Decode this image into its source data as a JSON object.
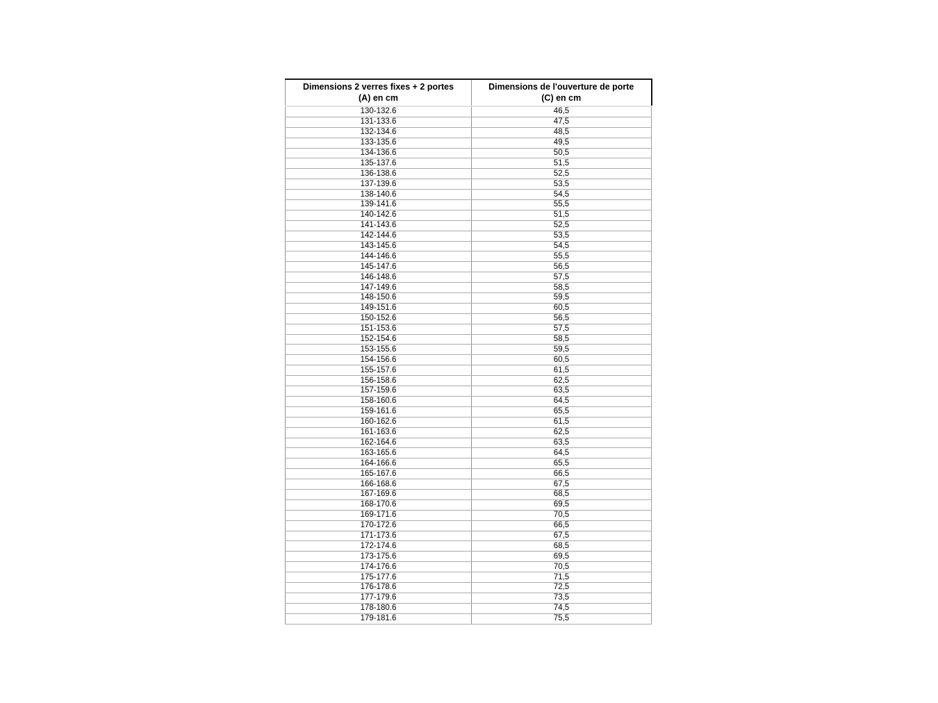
{
  "table": {
    "headers": [
      {
        "line1": "Dimensions 2 verres fixes + 2 portes",
        "line2": "(A) en cm"
      },
      {
        "line1": "Dimensions de l'ouverture de porte",
        "line2": "(C) en cm"
      }
    ],
    "rows": [
      [
        "130-132.6",
        "46,5"
      ],
      [
        "131-133.6",
        "47,5"
      ],
      [
        "132-134.6",
        "48,5"
      ],
      [
        "133-135.6",
        "49,5"
      ],
      [
        "134-136.6",
        "50,5"
      ],
      [
        "135-137.6",
        "51,5"
      ],
      [
        "136-138.6",
        "52,5"
      ],
      [
        "137-139.6",
        "53,5"
      ],
      [
        "138-140.6",
        "54,5"
      ],
      [
        "139-141.6",
        "55,5"
      ],
      [
        "140-142.6",
        "51,5"
      ],
      [
        "141-143.6",
        "52,5"
      ],
      [
        "142-144.6",
        "53,5"
      ],
      [
        "143-145.6",
        "54,5"
      ],
      [
        "144-146.6",
        "55,5"
      ],
      [
        "145-147.6",
        "56,5"
      ],
      [
        "146-148.6",
        "57,5"
      ],
      [
        "147-149.6",
        "58,5"
      ],
      [
        "148-150.6",
        "59,5"
      ],
      [
        "149-151.6",
        "60,5"
      ],
      [
        "150-152.6",
        "56,5"
      ],
      [
        "151-153.6",
        "57,5"
      ],
      [
        "152-154.6",
        "58,5"
      ],
      [
        "153-155.6",
        "59,5"
      ],
      [
        "154-156.6",
        "60,5"
      ],
      [
        "155-157.6",
        "61,5"
      ],
      [
        "156-158.6",
        "62,5"
      ],
      [
        "157-159.6",
        "63,5"
      ],
      [
        "158-160.6",
        "64,5"
      ],
      [
        "159-161.6",
        "65,5"
      ],
      [
        "160-162.6",
        "61,5"
      ],
      [
        "161-163.6",
        "62,5"
      ],
      [
        "162-164.6",
        "63,5"
      ],
      [
        "163-165.6",
        "64,5"
      ],
      [
        "164-166.6",
        "65,5"
      ],
      [
        "165-167.6",
        "66,5"
      ],
      [
        "166-168.6",
        "67,5"
      ],
      [
        "167-169.6",
        "68,5"
      ],
      [
        "168-170.6",
        "69,5"
      ],
      [
        "169-171.6",
        "70,5"
      ],
      [
        "170-172.6",
        "66,5"
      ],
      [
        "171-173.6",
        "67,5"
      ],
      [
        "172-174.6",
        "68,5"
      ],
      [
        "173-175.6",
        "69,5"
      ],
      [
        "174-176.6",
        "70,5"
      ],
      [
        "175-177.6",
        "71,5"
      ],
      [
        "176-178.6",
        "72,5"
      ],
      [
        "177-179.6",
        "73,5"
      ],
      [
        "178-180.6",
        "74,5"
      ],
      [
        "179-181.6",
        "75,5"
      ]
    ]
  },
  "colors": {
    "header_border_top": "#1a1a1a",
    "header_border_right": "#111111",
    "grid_line": "#ababab",
    "column_divider": "#8f8f8f",
    "text": "#000000",
    "background": "#ffffff"
  }
}
